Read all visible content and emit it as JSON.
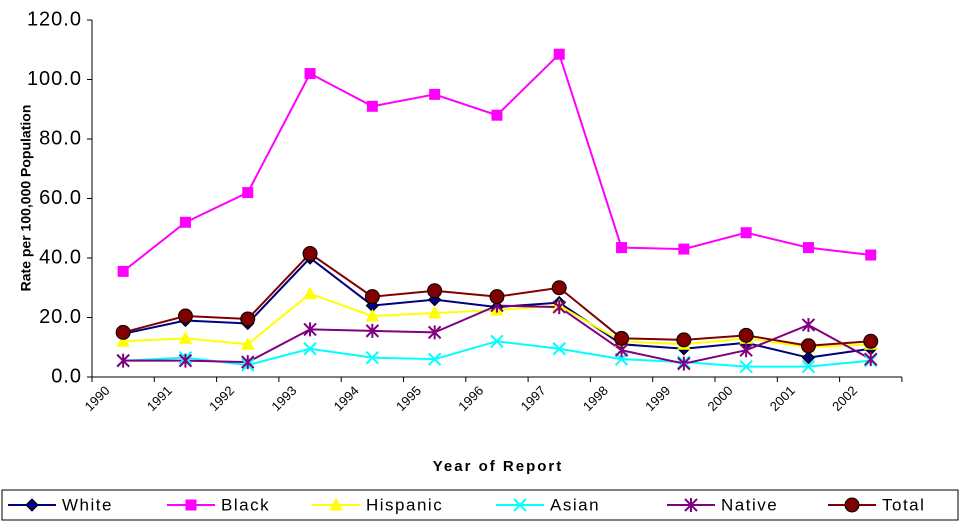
{
  "chart_data": {
    "type": "line",
    "x_label": "Year of Report",
    "y_label": "Rate per 100,000 Population",
    "categories": [
      "1990",
      "1991",
      "1992",
      "1993",
      "1994",
      "1995",
      "1996",
      "1997",
      "1998",
      "1999",
      "2000",
      "2001",
      "2002"
    ],
    "series": [
      {
        "name": "White",
        "color": "#000080",
        "marker": "diamond",
        "values": [
          14.5,
          19,
          18,
          40,
          24,
          26,
          23.5,
          25,
          11,
          9.5,
          11.5,
          6.5,
          9.5
        ]
      },
      {
        "name": "Black",
        "color": "#ff00ff",
        "marker": "square",
        "values": [
          35.5,
          52,
          62,
          102,
          91,
          95,
          88,
          108.5,
          43.5,
          43,
          48.5,
          43.5,
          41
        ]
      },
      {
        "name": "Hispanic",
        "color": "#ffff00",
        "marker": "triangle",
        "values": [
          12,
          13,
          11,
          28,
          20.5,
          21.5,
          22.5,
          24,
          12,
          11,
          13,
          10,
          11
        ]
      },
      {
        "name": "Asian",
        "color": "#00ffff",
        "marker": "x",
        "values": [
          5.5,
          6.5,
          4,
          9.5,
          6.5,
          6,
          12,
          9.5,
          6,
          5,
          3.5,
          3.5,
          5.5
        ]
      },
      {
        "name": "Native",
        "color": "#800080",
        "marker": "star",
        "values": [
          5.5,
          5.5,
          5,
          16,
          15.5,
          15,
          24,
          23.5,
          9,
          4.5,
          9,
          17.5,
          6
        ]
      },
      {
        "name": "Total",
        "color": "#800000",
        "marker": "circle",
        "values": [
          15,
          20.5,
          19.5,
          41.5,
          27,
          29,
          27,
          30,
          13,
          12.5,
          14,
          10.5,
          12
        ]
      }
    ],
    "ylim": [
      0,
      120
    ],
    "yticks": [
      {
        "value": 0,
        "label": "0.0"
      },
      {
        "value": 20,
        "label": "20.0"
      },
      {
        "value": 40,
        "label": "40.0"
      },
      {
        "value": 60,
        "label": "60.0"
      },
      {
        "value": 80,
        "label": "80.0"
      },
      {
        "value": 100,
        "label": "100.0"
      },
      {
        "value": 120,
        "label": "120.0"
      }
    ],
    "grid": false,
    "legend": "bottom"
  }
}
